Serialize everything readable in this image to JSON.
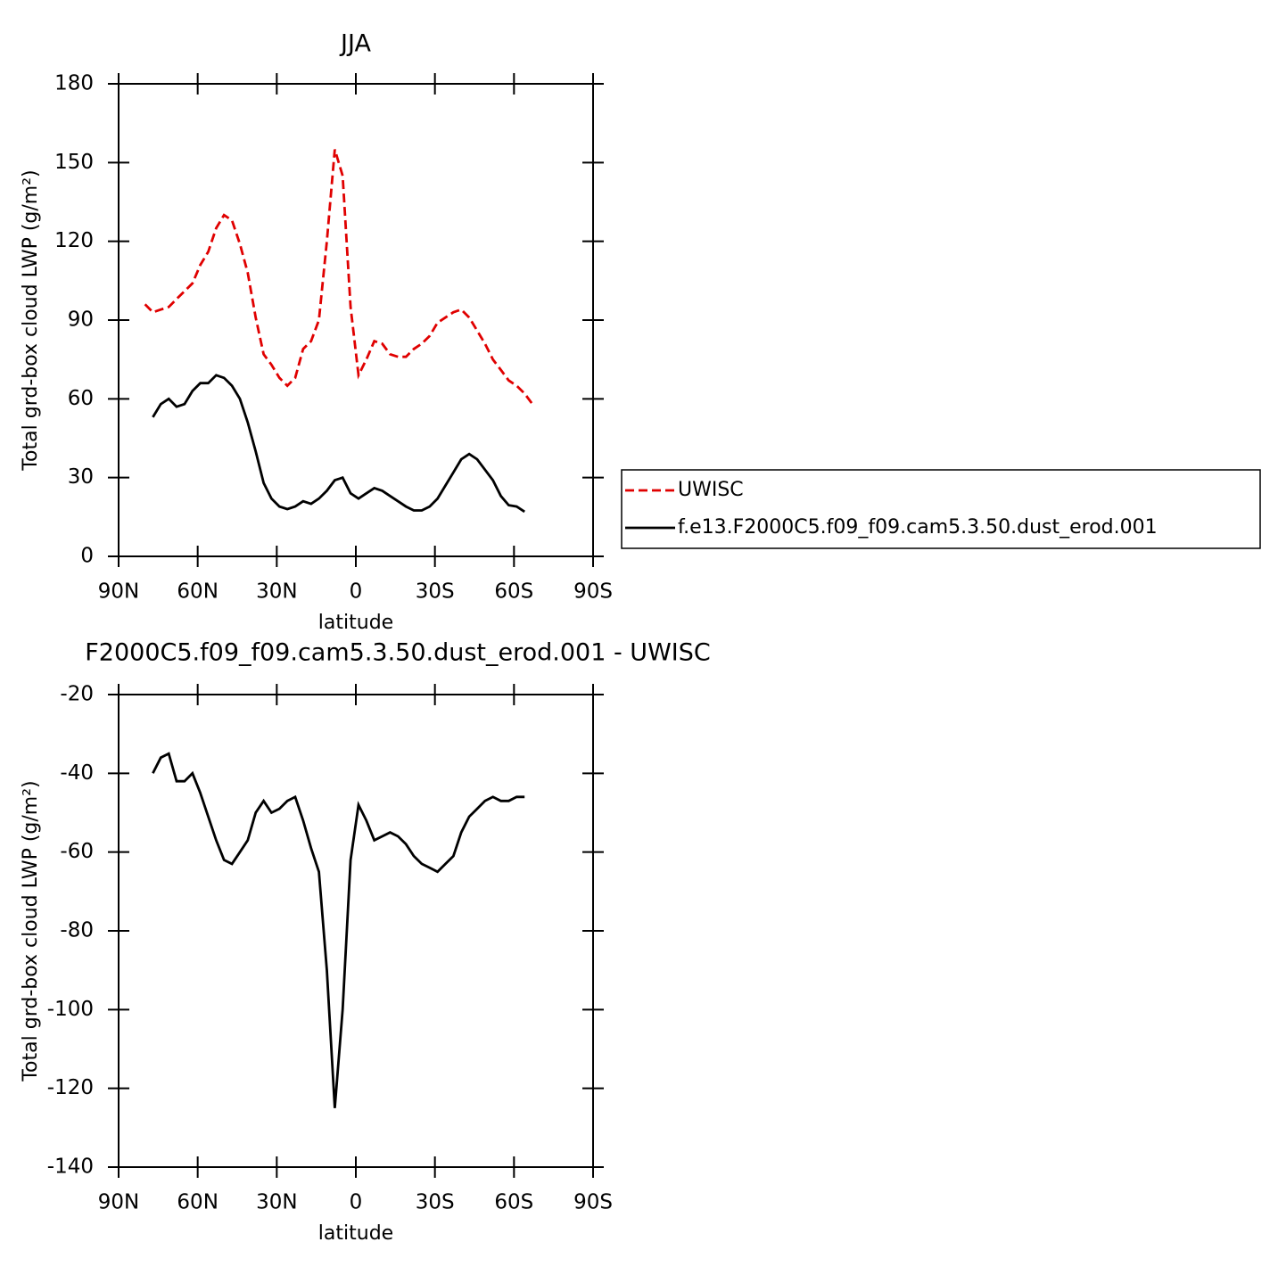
{
  "chart_data": [
    {
      "type": "line",
      "title": "JJA",
      "xlabel": "latitude",
      "ylabel": "Total grd-box cloud LWP (g/m²)",
      "x": [
        80,
        77,
        74,
        71,
        68,
        65,
        62,
        59,
        56,
        53,
        50,
        47,
        44,
        41,
        38,
        35,
        32,
        29,
        26,
        23,
        20,
        17,
        14,
        11,
        8,
        5,
        2,
        -1,
        -4,
        -7,
        -10,
        -13,
        -16,
        -19,
        -22,
        -25,
        -28,
        -31,
        -34,
        -37,
        -40,
        -43,
        -46,
        -49,
        -52,
        -55,
        -58,
        -61,
        -64,
        -67
      ],
      "series": [
        {
          "name": "UWISC",
          "color": "#e00000",
          "linestyle": "dashed",
          "values": [
            96,
            93,
            94,
            95,
            98,
            101,
            104,
            111,
            116,
            125,
            130,
            128,
            119,
            108,
            91,
            77,
            73,
            68,
            65,
            68,
            79,
            82,
            90,
            120,
            155,
            145,
            95,
            69,
            75,
            82,
            81,
            77,
            76,
            76,
            79,
            81,
            84,
            89,
            91,
            93,
            94,
            91,
            86,
            81,
            75,
            71,
            67,
            65,
            62,
            58
          ]
        },
        {
          "name": "f.e13.F2000C5.f09_f09.cam5.3.50.dust_erod.001",
          "color": "#000000",
          "linestyle": "solid",
          "values": [
            null,
            53,
            58,
            60,
            57,
            58,
            63,
            66,
            66,
            69,
            68,
            65,
            60,
            51,
            40,
            28,
            22,
            19,
            18,
            19,
            21,
            20,
            22,
            25,
            29,
            30,
            24,
            22,
            24,
            26,
            25,
            23,
            21,
            19,
            17.5,
            17.5,
            19,
            22,
            27,
            32,
            37,
            39,
            37,
            33,
            29,
            23,
            19.5,
            19,
            17,
            null
          ]
        }
      ],
      "xlim": [
        90,
        -90
      ],
      "xticks": [
        {
          "value": 90,
          "label": "90N"
        },
        {
          "value": 60,
          "label": "60N"
        },
        {
          "value": 30,
          "label": "30N"
        },
        0,
        {
          "value": -30,
          "label": "30S"
        },
        {
          "value": -60,
          "label": "60S"
        },
        {
          "value": -90,
          "label": "90S"
        }
      ],
      "ylim": [
        0,
        180
      ],
      "yticks": [
        0,
        30,
        60,
        90,
        120,
        150,
        180
      ],
      "legend": "right"
    },
    {
      "type": "line",
      "title": "F2000C5.f09_f09.cam5.3.50.dust_erod.001 - UWISC",
      "xlabel": "latitude",
      "ylabel": "Total grd-box cloud LWP (g/m²)",
      "x": [
        80,
        77,
        74,
        71,
        68,
        65,
        62,
        59,
        56,
        53,
        50,
        47,
        44,
        41,
        38,
        35,
        32,
        29,
        26,
        23,
        20,
        17,
        14,
        11,
        8,
        5,
        2,
        -1,
        -4,
        -7,
        -10,
        -13,
        -16,
        -19,
        -22,
        -25,
        -28,
        -31,
        -34,
        -37,
        -40,
        -43,
        -46,
        -49,
        -52,
        -55,
        -58,
        -61,
        -64,
        -67
      ],
      "series": [
        {
          "color": "#000000",
          "linestyle": "solid",
          "values": [
            null,
            -40,
            -36,
            -35,
            -42,
            -42,
            -40,
            -45,
            -51,
            -57,
            -62,
            -63,
            -60,
            -57,
            -50,
            -47,
            -50,
            -49,
            -47,
            -46,
            -52,
            -59,
            -65,
            -90,
            -125,
            -100,
            -62,
            -48,
            -52,
            -57,
            -56,
            -55,
            -56,
            -58,
            -61,
            -63,
            -64,
            -65,
            -63,
            -61,
            -55,
            -51,
            -49,
            -47,
            -46,
            -47,
            -47,
            -46,
            -46,
            null
          ]
        }
      ],
      "xlim": [
        90,
        -90
      ],
      "xticks": [
        {
          "value": 90,
          "label": "90N"
        },
        {
          "value": 60,
          "label": "60N"
        },
        {
          "value": 30,
          "label": "30N"
        },
        0,
        {
          "value": -30,
          "label": "30S"
        },
        {
          "value": -60,
          "label": "60S"
        },
        {
          "value": -90,
          "label": "90S"
        }
      ],
      "ylim": [
        -140,
        -20
      ],
      "yticks": [
        -140,
        -120,
        -100,
        -80,
        -60,
        -40,
        -20
      ]
    }
  ]
}
